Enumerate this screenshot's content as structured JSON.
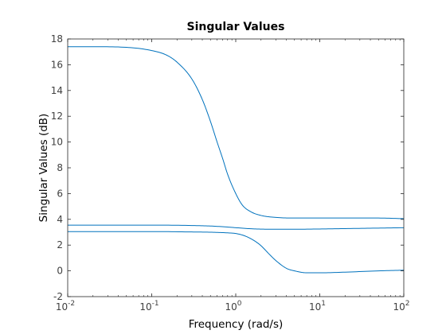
{
  "chart_data": {
    "type": "line",
    "title": "Singular Values",
    "xlabel": "Frequency (rad/s)",
    "ylabel": "Singular Values (dB)",
    "x_scale": "log",
    "xlim": [
      0.01,
      100
    ],
    "ylim": [
      -2,
      18
    ],
    "x_ticks": [
      {
        "value": 0.01,
        "base": "10",
        "exp": "-2"
      },
      {
        "value": 0.1,
        "base": "10",
        "exp": "-1"
      },
      {
        "value": 1,
        "base": "10",
        "exp": "0"
      },
      {
        "value": 10,
        "base": "10",
        "exp": "1"
      },
      {
        "value": 100,
        "base": "10",
        "exp": "2"
      }
    ],
    "y_ticks": [
      {
        "value": -2,
        "label": "-2"
      },
      {
        "value": 0,
        "label": "0"
      },
      {
        "value": 2,
        "label": "2"
      },
      {
        "value": 4,
        "label": "4"
      },
      {
        "value": 6,
        "label": "6"
      },
      {
        "value": 8,
        "label": "8"
      },
      {
        "value": 10,
        "label": "10"
      },
      {
        "value": 12,
        "label": "12"
      },
      {
        "value": 14,
        "label": "14"
      },
      {
        "value": 16,
        "label": "16"
      },
      {
        "value": 18,
        "label": "18"
      }
    ],
    "grid": false,
    "line_color": "#0072BD",
    "series": [
      {
        "x": [
          0.01,
          0.02,
          0.05,
          0.1,
          0.15,
          0.2,
          0.3,
          0.4,
          0.5,
          0.6,
          0.7,
          0.8,
          1.0,
          1.2,
          1.5,
          2.0,
          3.0,
          5.0,
          10,
          20,
          50,
          100
        ],
        "values": [
          17.4,
          17.4,
          17.35,
          17.1,
          16.75,
          16.2,
          14.9,
          13.3,
          11.6,
          10.0,
          8.7,
          7.5,
          6.0,
          5.1,
          4.6,
          4.3,
          4.15,
          4.1,
          4.1,
          4.1,
          4.1,
          4.05
        ]
      },
      {
        "x": [
          0.01,
          0.1,
          0.3,
          0.5,
          0.8,
          1.0,
          1.5,
          2.0,
          3.0,
          5.0,
          10,
          20,
          50,
          100
        ],
        "values": [
          3.55,
          3.55,
          3.52,
          3.48,
          3.4,
          3.35,
          3.27,
          3.24,
          3.23,
          3.23,
          3.25,
          3.28,
          3.32,
          3.35
        ]
      },
      {
        "x": [
          0.01,
          0.1,
          0.3,
          0.5,
          0.8,
          1.0,
          1.3,
          1.7,
          2.0,
          2.5,
          3.0,
          4.0,
          5.0,
          7.0,
          10,
          20,
          50,
          100
        ],
        "values": [
          3.05,
          3.05,
          3.02,
          3.0,
          2.95,
          2.9,
          2.7,
          2.3,
          1.95,
          1.3,
          0.8,
          0.2,
          0.0,
          -0.15,
          -0.15,
          -0.1,
          0.0,
          0.05
        ]
      }
    ]
  }
}
